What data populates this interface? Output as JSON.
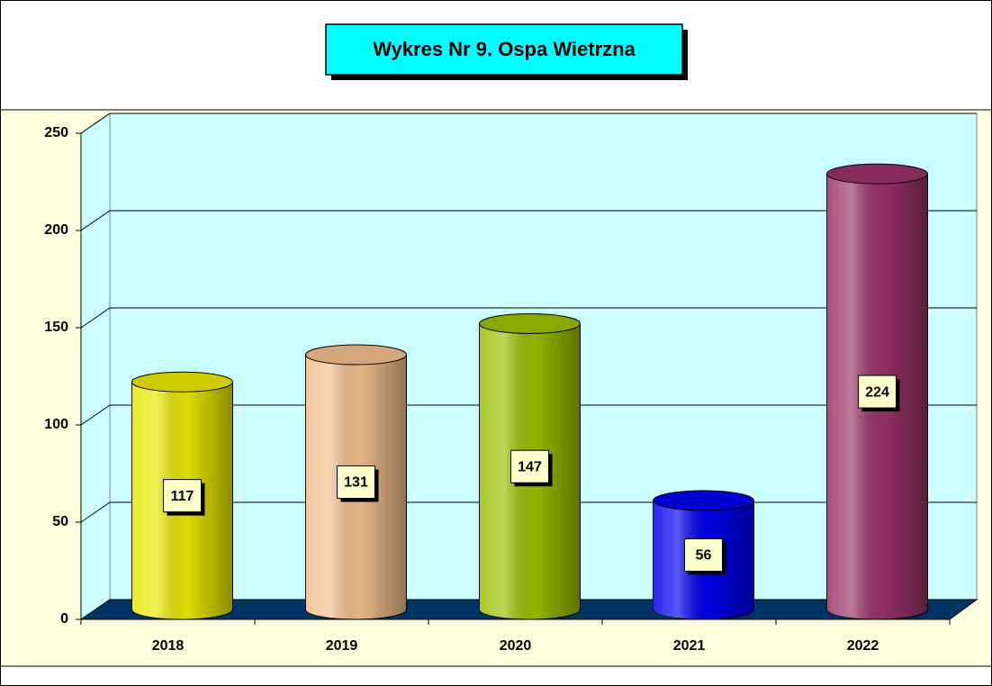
{
  "chart_data": {
    "type": "bar",
    "title": "Wykres Nr 9. Ospa Wietrzna",
    "categories": [
      "2018",
      "2019",
      "2020",
      "2021",
      "2022"
    ],
    "values": [
      117,
      131,
      147,
      56,
      224
    ],
    "colors": [
      "#e8e800",
      "#f2be8c",
      "#99c000",
      "#0000ee",
      "#993366"
    ],
    "ylim": [
      0,
      250
    ],
    "yticks": [
      0,
      50,
      100,
      150,
      200,
      250
    ],
    "grid": true
  }
}
